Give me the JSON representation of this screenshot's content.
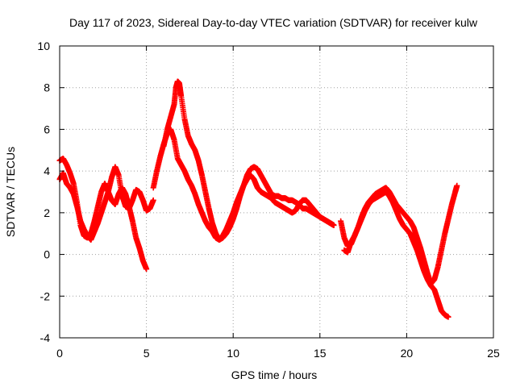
{
  "chart_data": {
    "type": "scatter",
    "title": "Day 117 of 2023, Sidereal Day-to-day VTEC variation (SDTVAR) for receiver kulw",
    "xlabel": "GPS time / hours",
    "ylabel": "SDTVAR / TECUs",
    "xlim": [
      0,
      25
    ],
    "ylim": [
      -4,
      10
    ],
    "xticks": [
      "0",
      "5",
      "10",
      "15",
      "20",
      "25"
    ],
    "yticks": [
      "-4",
      "-2",
      "0",
      "2",
      "4",
      "6",
      "8",
      "10"
    ],
    "grid": true,
    "marker": "+",
    "series": [
      {
        "name": "SDTVAR",
        "color": "#ff0000",
        "segments": [
          {
            "x": [
              0.0,
              0.2,
              0.4,
              0.6,
              0.8,
              1.0,
              1.2,
              1.4,
              1.6,
              1.8,
              2.0,
              2.2,
              2.4,
              2.6,
              2.8,
              3.0,
              3.2,
              3.4,
              3.6,
              3.8,
              4.0,
              4.2,
              4.4,
              4.6,
              4.8,
              5.0
            ],
            "y": [
              4.5,
              4.6,
              4.3,
              3.9,
              3.4,
              2.5,
              1.4,
              0.9,
              0.8,
              1.0,
              1.6,
              2.3,
              3.0,
              3.4,
              3.0,
              2.6,
              2.4,
              2.9,
              3.2,
              2.9,
              2.3,
              1.6,
              0.8,
              0.3,
              -0.3,
              -0.7
            ]
          },
          {
            "x": [
              0.0,
              0.2,
              0.4,
              0.6,
              0.8,
              1.0,
              1.2,
              1.4,
              1.6,
              1.8,
              2.0,
              2.2,
              2.4,
              2.6,
              2.8,
              3.0,
              3.2,
              3.4,
              3.6,
              3.8,
              4.0,
              4.2,
              4.4,
              4.6,
              4.8,
              5.0,
              5.2,
              5.4
            ],
            "y": [
              3.6,
              3.9,
              3.4,
              3.2,
              2.9,
              2.3,
              1.6,
              1.2,
              0.9,
              0.7,
              1.1,
              1.5,
              2.0,
              2.5,
              3.0,
              3.7,
              4.2,
              3.8,
              2.8,
              2.3,
              2.2,
              2.6,
              3.1,
              3.0,
              2.6,
              2.1,
              2.2,
              2.6
            ]
          },
          {
            "x": [
              5.4,
              5.6,
              5.8,
              6.0,
              6.2,
              6.4,
              6.6,
              6.8,
              7.0,
              7.2,
              7.4,
              7.6,
              7.8,
              8.0,
              8.2,
              8.4,
              8.6,
              8.8,
              9.0,
              9.2,
              9.4,
              9.6,
              9.8,
              10.0,
              10.2,
              10.4,
              10.6,
              10.8,
              11.0,
              11.2,
              11.4,
              11.6,
              11.8,
              12.0,
              12.2,
              12.4,
              12.6,
              12.8,
              13.0,
              13.2,
              13.4,
              13.6,
              13.8,
              14.0,
              14.2,
              14.4,
              14.6,
              14.8,
              15.0,
              15.2,
              15.4,
              15.6,
              15.8
            ],
            "y": [
              3.2,
              4.0,
              4.7,
              5.3,
              5.8,
              6.0,
              5.5,
              4.6,
              4.3,
              4.0,
              3.6,
              3.3,
              2.9,
              2.4,
              2.0,
              1.6,
              1.3,
              1.1,
              0.8,
              0.7,
              0.9,
              1.2,
              1.6,
              2.0,
              2.5,
              2.9,
              3.3,
              3.6,
              3.8,
              3.6,
              3.2,
              3.0,
              2.9,
              2.8,
              2.7,
              2.5,
              2.4,
              2.3,
              2.2,
              2.1,
              2.0,
              2.1,
              2.4,
              2.6,
              2.6,
              2.4,
              2.2,
              2.0,
              1.8,
              1.7,
              1.6,
              1.5,
              1.4
            ]
          },
          {
            "x": [
              6.0,
              6.2,
              6.4,
              6.6,
              6.7,
              6.8,
              6.9,
              7.0,
              7.2,
              7.4,
              7.6,
              7.8,
              8.0,
              8.2,
              8.4,
              8.6,
              8.8,
              9.0,
              9.2,
              9.4,
              9.6,
              9.8,
              10.0,
              10.2,
              10.4,
              10.6,
              10.8,
              11.0,
              11.2,
              11.4,
              11.6,
              11.8,
              12.0,
              12.2,
              12.4,
              12.6,
              12.8,
              13.0,
              13.2,
              13.4,
              13.6,
              13.8,
              14.0,
              14.2,
              14.4,
              14.6,
              14.8,
              15.0,
              15.2,
              15.4,
              15.6,
              15.8
            ],
            "y": [
              5.2,
              6.0,
              6.6,
              7.2,
              8.0,
              8.3,
              8.2,
              7.6,
              6.5,
              5.7,
              5.3,
              5.0,
              4.5,
              3.8,
              3.0,
              2.2,
              1.5,
              1.0,
              0.7,
              0.8,
              1.0,
              1.3,
              1.7,
              2.2,
              2.8,
              3.3,
              3.8,
              4.1,
              4.2,
              4.1,
              3.8,
              3.5,
              3.2,
              2.9,
              2.8,
              2.8,
              2.7,
              2.7,
              2.6,
              2.6,
              2.5,
              2.4,
              2.2,
              2.2,
              2.1,
              2.0,
              1.9,
              1.8,
              1.7,
              1.6,
              1.5,
              1.4
            ]
          },
          {
            "x": [
              16.2,
              16.4,
              16.6,
              16.8,
              17.0,
              17.2,
              17.4,
              17.6,
              17.8,
              18.0,
              18.2,
              18.4,
              18.6,
              18.8,
              19.0,
              19.2,
              19.4,
              19.6,
              19.8,
              20.0,
              20.2,
              20.4,
              20.6,
              20.8,
              21.0,
              21.2,
              21.4,
              21.6,
              21.8,
              22.0,
              22.2,
              22.4,
              22.6,
              22.8,
              22.9
            ],
            "y": [
              1.6,
              0.8,
              0.4,
              0.5,
              0.9,
              1.3,
              1.8,
              2.2,
              2.5,
              2.7,
              2.9,
              3.0,
              3.1,
              3.2,
              3.0,
              2.7,
              2.4,
              2.2,
              2.0,
              1.8,
              1.6,
              1.3,
              0.8,
              0.3,
              -0.3,
              -0.9,
              -1.4,
              -1.2,
              -0.6,
              0.2,
              1.0,
              1.7,
              2.4,
              3.0,
              3.3
            ]
          },
          {
            "x": [
              16.4,
              16.6,
              16.8,
              17.0,
              17.2,
              17.4,
              17.6,
              17.8,
              18.0,
              18.2,
              18.4,
              18.6,
              18.8,
              19.0,
              19.2,
              19.4,
              19.6,
              19.8,
              20.0,
              20.2,
              20.4,
              20.6,
              20.8,
              21.0,
              21.2,
              21.4,
              21.6,
              21.8,
              22.0,
              22.2,
              22.4
            ],
            "y": [
              0.2,
              0.1,
              0.6,
              0.9,
              1.3,
              1.7,
              2.1,
              2.4,
              2.6,
              2.7,
              2.8,
              2.9,
              3.0,
              2.8,
              2.5,
              2.1,
              1.7,
              1.4,
              1.2,
              1.0,
              0.6,
              0.2,
              -0.3,
              -0.8,
              -1.2,
              -1.5,
              -1.7,
              -2.2,
              -2.7,
              -2.9,
              -3.0
            ]
          }
        ]
      }
    ]
  }
}
